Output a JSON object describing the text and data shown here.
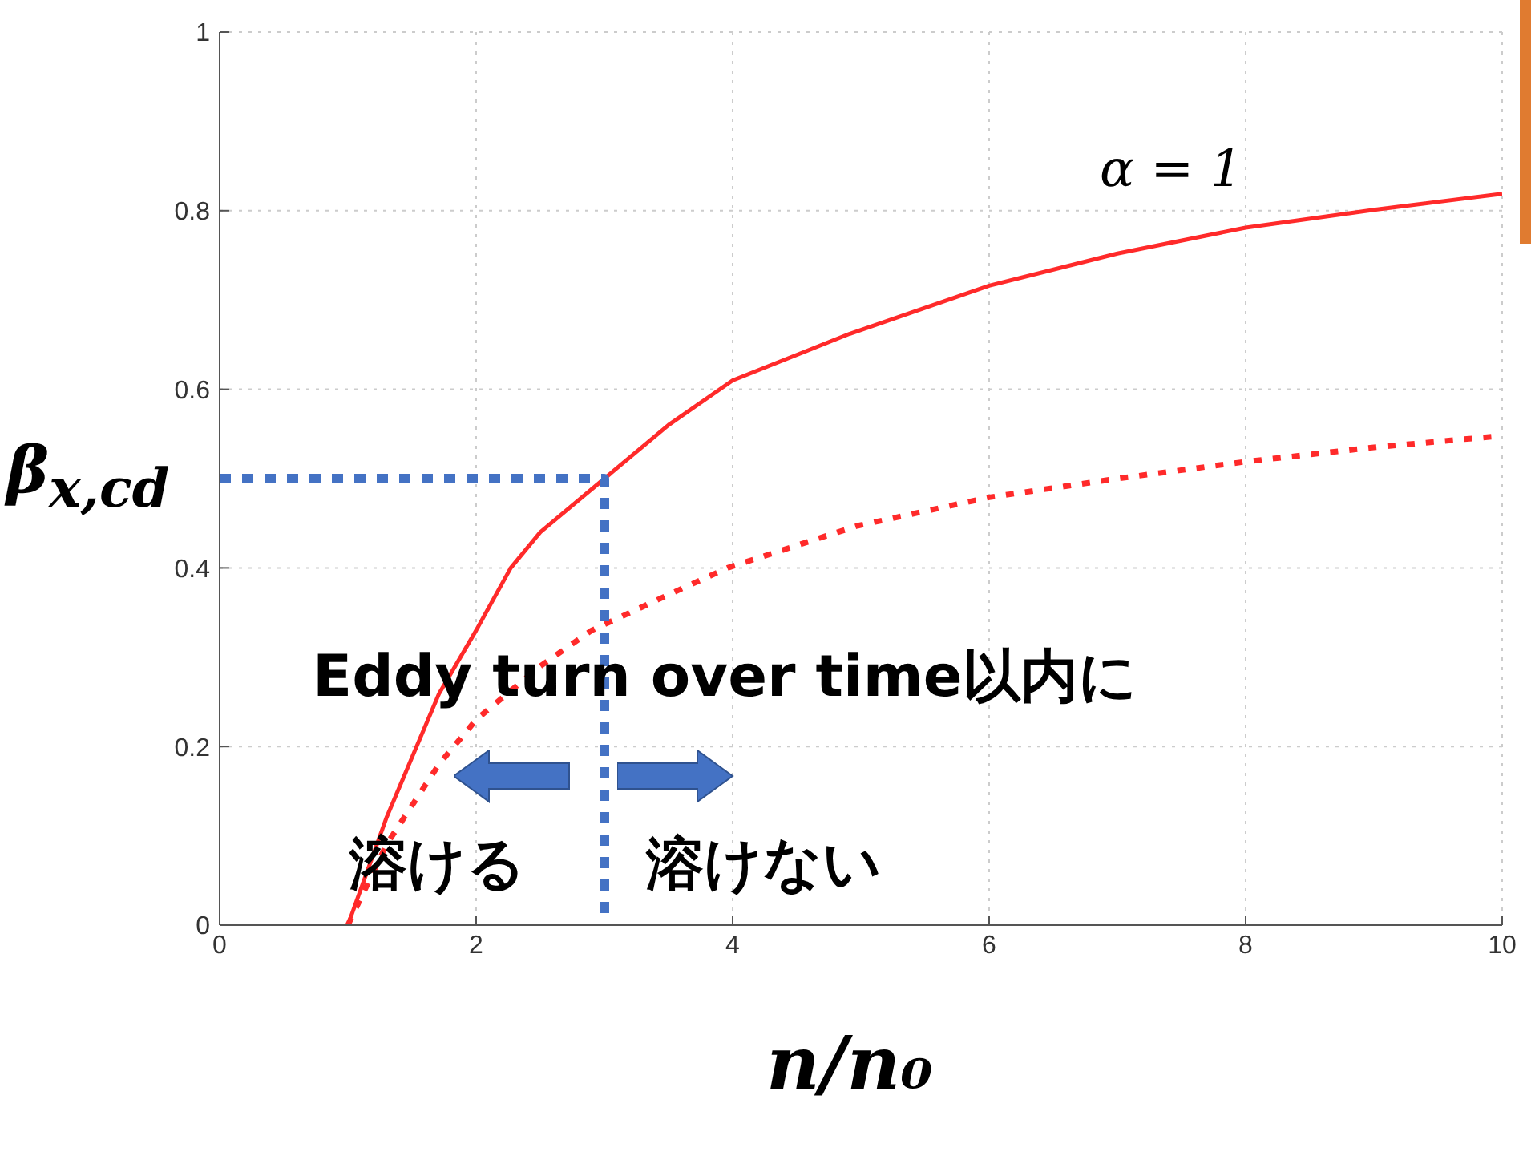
{
  "chart_data": {
    "type": "line",
    "xlabel": "n/n₀",
    "ylabel": "β$_{x,cd}$",
    "annotations": [
      "α = 1",
      "Eddy turn over time以内に",
      "溶ける",
      "溶けない"
    ],
    "series": [
      {
        "type": "line",
        "color": "#ff2a2a",
        "line_style": "solid",
        "x": [
          1,
          1.3,
          1.71,
          2,
          2.27,
          2.5,
          3,
          3.5,
          4,
          4.91,
          6,
          7,
          8,
          9,
          10
        ],
        "values": [
          0,
          0.12,
          0.259,
          0.33,
          0.4,
          0.44,
          0.5,
          0.56,
          0.61,
          0.662,
          0.716,
          0.752,
          0.781,
          0.801,
          0.819
        ]
      },
      {
        "type": "line",
        "color": "#ff2a2a",
        "line_style": "dashed",
        "x": [
          1,
          1.3,
          1.71,
          2,
          2.5,
          2.9,
          3.5,
          3.96,
          4.97,
          6,
          7,
          8,
          9,
          10
        ],
        "values": [
          0,
          0.09,
          0.18,
          0.23,
          0.29,
          0.33,
          0.37,
          0.4,
          0.447,
          0.479,
          0.5,
          0.519,
          0.535,
          0.548
        ]
      },
      {
        "type": "line",
        "color": "#4472c4",
        "line_style": "dotted",
        "x": [
          0,
          3,
          3
        ],
        "values": [
          0.5,
          0.5,
          0
        ]
      }
    ],
    "xlim": [
      0,
      10
    ],
    "xticks": [
      0,
      2,
      4,
      6,
      8,
      10
    ],
    "ylim": [
      0,
      1
    ],
    "yticks": [
      0,
      0.2,
      0.4,
      0.6,
      0.8,
      1
    ],
    "grid": true
  }
}
